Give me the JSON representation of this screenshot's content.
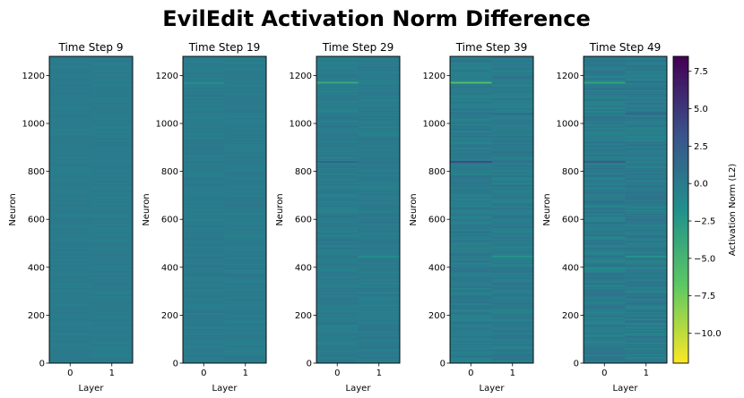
{
  "chart_data": {
    "type": "heatmap",
    "title": "EvilEdit Activation Norm Difference",
    "xlabel": "Layer",
    "ylabel": "Neuron",
    "x_categories": [
      "0",
      "1"
    ],
    "y_range": [
      0,
      1280
    ],
    "y_ticks": [
      0,
      200,
      400,
      600,
      800,
      1000,
      1200
    ],
    "neuron_count": 1280,
    "colormap": "viridis_r",
    "colorbar": {
      "label": "Activation Norm (L2)",
      "range": [
        -12,
        8.5
      ],
      "ticks": [
        -10.0,
        -7.5,
        -5.0,
        -2.5,
        0.0,
        2.5,
        5.0,
        7.5
      ],
      "tick_labels": [
        "−10.0",
        "−7.5",
        "−5.0",
        "−2.5",
        "0.0",
        "2.5",
        "5.0",
        "7.5"
      ],
      "colors": [
        "#fde725",
        "#5ec962",
        "#21918c",
        "#3b528b",
        "#440154"
      ]
    },
    "panels": [
      {
        "title": "Time Step 9",
        "noise": 0.25,
        "features": []
      },
      {
        "title": "Time Step 19",
        "noise": 0.35,
        "features": [
          {
            "layer": 0,
            "neuron": 1168,
            "value": -1.5
          }
        ]
      },
      {
        "title": "Time Step 29",
        "noise": 0.5,
        "features": [
          {
            "layer": 0,
            "neuron": 1170,
            "value": -4.0
          },
          {
            "layer": 0,
            "neuron": 840,
            "value": 2.0
          },
          {
            "layer": 1,
            "neuron": 445,
            "value": -1.5
          }
        ]
      },
      {
        "title": "Time Step 39",
        "noise": 0.65,
        "features": [
          {
            "layer": 0,
            "neuron": 1170,
            "value": -6.0
          },
          {
            "layer": 0,
            "neuron": 840,
            "value": 4.0
          },
          {
            "layer": 1,
            "neuron": 1040,
            "value": 1.5
          },
          {
            "layer": 1,
            "neuron": 445,
            "value": -2.0
          }
        ]
      },
      {
        "title": "Time Step 49",
        "noise": 0.85,
        "features": [
          {
            "layer": 0,
            "neuron": 1170,
            "value": -3.5
          },
          {
            "layer": 0,
            "neuron": 840,
            "value": 2.5
          },
          {
            "layer": 1,
            "neuron": 1040,
            "value": 1.5
          },
          {
            "layer": 1,
            "neuron": 445,
            "value": -2.0
          },
          {
            "layer": 0,
            "neuron": 395,
            "value": -1.5
          }
        ]
      }
    ]
  }
}
